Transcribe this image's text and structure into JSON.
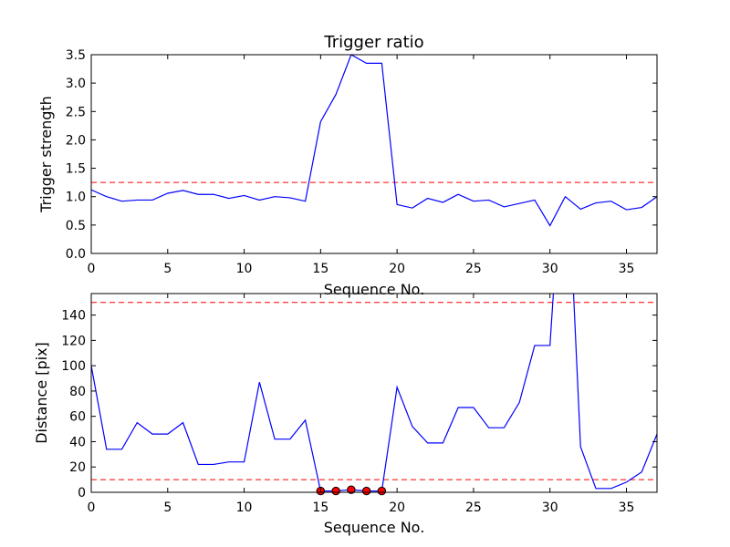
{
  "chart_data": [
    {
      "type": "line",
      "title": "Trigger ratio",
      "xlabel": "Sequence No.",
      "ylabel": "Trigger strength",
      "xlim": [
        0,
        37
      ],
      "ylim": [
        0,
        3.5
      ],
      "xticks": [
        0,
        5,
        10,
        15,
        20,
        25,
        30,
        35
      ],
      "yticks": [
        0.0,
        0.5,
        1.0,
        1.5,
        2.0,
        2.5,
        3.0,
        3.5
      ],
      "xtick_labels": [
        "0",
        "5",
        "10",
        "15",
        "20",
        "25",
        "30",
        "35"
      ],
      "ytick_labels": [
        "0.0",
        "0.5",
        "1.0",
        "1.5",
        "2.0",
        "2.5",
        "3.0",
        "3.5"
      ],
      "line_color": "#0000ff",
      "threshold_color": "#ff0000",
      "thresholds": [
        1.25
      ],
      "series": [
        {
          "x": [
            0,
            1,
            2,
            3,
            4,
            5,
            6,
            7,
            8,
            9,
            10,
            11,
            12,
            13,
            14,
            15,
            16,
            17,
            18,
            19,
            20,
            21,
            22,
            23,
            24,
            25,
            26,
            27,
            28,
            29,
            30,
            31,
            32,
            33,
            34,
            35,
            36,
            37
          ],
          "values": [
            1.12,
            1.0,
            0.92,
            0.94,
            0.94,
            1.06,
            1.11,
            1.04,
            1.04,
            0.97,
            1.02,
            0.94,
            1.0,
            0.98,
            0.92,
            2.32,
            2.8,
            3.5,
            3.35,
            3.35,
            0.86,
            0.8,
            0.97,
            0.9,
            1.04,
            0.92,
            0.94,
            0.82,
            0.88,
            0.94,
            0.49,
            1.0,
            0.78,
            0.89,
            0.92,
            0.77,
            0.81,
            1.0
          ]
        }
      ]
    },
    {
      "type": "line",
      "title": "",
      "xlabel": "Sequence No.",
      "ylabel": "Distance [pix]",
      "xlim": [
        0,
        37
      ],
      "ylim": [
        0,
        157
      ],
      "xticks": [
        0,
        5,
        10,
        15,
        20,
        25,
        30,
        35
      ],
      "yticks": [
        0,
        20,
        40,
        60,
        80,
        100,
        120,
        140
      ],
      "xtick_labels": [
        "0",
        "5",
        "10",
        "15",
        "20",
        "25",
        "30",
        "35"
      ],
      "ytick_labels": [
        "0",
        "20",
        "40",
        "60",
        "80",
        "100",
        "120",
        "140"
      ],
      "line_color": "#0000ff",
      "threshold_color": "#ff0000",
      "marker_color": "#ff0000",
      "thresholds": [
        150,
        10
      ],
      "series": [
        {
          "x": [
            0,
            1,
            2,
            3,
            4,
            5,
            6,
            7,
            8,
            9,
            10,
            11,
            12,
            13,
            14,
            15,
            16,
            17,
            18,
            19,
            20,
            21,
            22,
            23,
            24,
            25,
            26,
            27,
            28,
            29,
            30,
            31,
            32,
            33,
            34,
            35,
            36,
            37
          ],
          "values": [
            100,
            34,
            34,
            55,
            46,
            46,
            55,
            22,
            22,
            24,
            24,
            87,
            42,
            42,
            57,
            1,
            1,
            2,
            1,
            1,
            83,
            52,
            39,
            39,
            67,
            67,
            51,
            51,
            71,
            116,
            116,
            300,
            36,
            3,
            3,
            8,
            16,
            46
          ]
        }
      ],
      "markers": {
        "x": [
          15,
          16,
          17,
          18,
          19
        ],
        "y": [
          1,
          1,
          2,
          1,
          1
        ]
      }
    }
  ]
}
